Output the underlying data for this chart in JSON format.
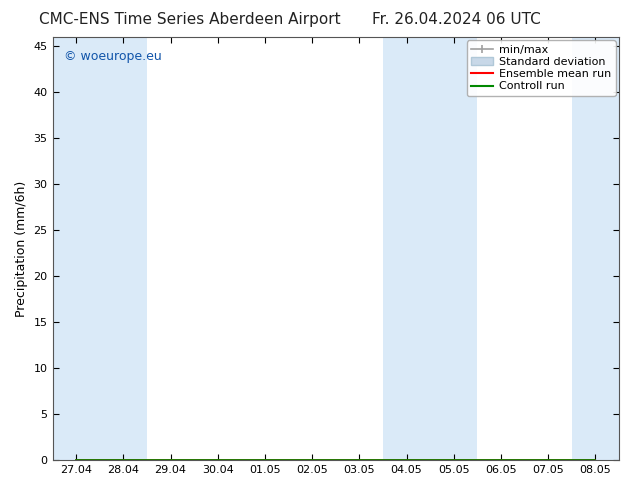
{
  "title_left": "CMC-ENS Time Series Aberdeen Airport",
  "title_right": "Fr. 26.04.2024 06 UTC",
  "ylabel": "Precipitation (mm/6h)",
  "watermark": "© woeurope.eu",
  "ylim": [
    0,
    46
  ],
  "yticks": [
    0,
    5,
    10,
    15,
    20,
    25,
    30,
    35,
    40,
    45
  ],
  "x_labels": [
    "27.04",
    "28.04",
    "29.04",
    "30.04",
    "01.05",
    "02.05",
    "03.05",
    "04.05",
    "05.05",
    "06.05",
    "07.05",
    "08.05"
  ],
  "shaded_indices": [
    0,
    1,
    7,
    8,
    11
  ],
  "band_color": "#daeaf8",
  "bg_color": "#ffffff",
  "ensemble_mean": [
    0,
    0,
    0,
    0,
    0,
    0,
    0,
    0,
    0,
    0,
    0,
    0
  ],
  "control_run": [
    0,
    0,
    0,
    0,
    0,
    0,
    0,
    0,
    0,
    0,
    0,
    0
  ],
  "min_vals": [
    0,
    0,
    0,
    0,
    0,
    0,
    0,
    0,
    0,
    0,
    0,
    0
  ],
  "max_vals": [
    0,
    0,
    0,
    0,
    0,
    0,
    0,
    0,
    0,
    0,
    0,
    0
  ],
  "std_low": [
    0,
    0,
    0,
    0,
    0,
    0,
    0,
    0,
    0,
    0,
    0,
    0
  ],
  "std_high": [
    0,
    0,
    0,
    0,
    0,
    0,
    0,
    0,
    0,
    0,
    0,
    0
  ],
  "minmax_color": "#a0a0a0",
  "std_fill_color": "#c8d8e8",
  "std_edge_color": "#b0c8d8",
  "ensemble_color": "#ff0000",
  "control_color": "#008800",
  "title_fontsize": 11,
  "tick_fontsize": 8,
  "ylabel_fontsize": 9,
  "watermark_color": "#1155aa",
  "watermark_fontsize": 9,
  "legend_fontsize": 8
}
